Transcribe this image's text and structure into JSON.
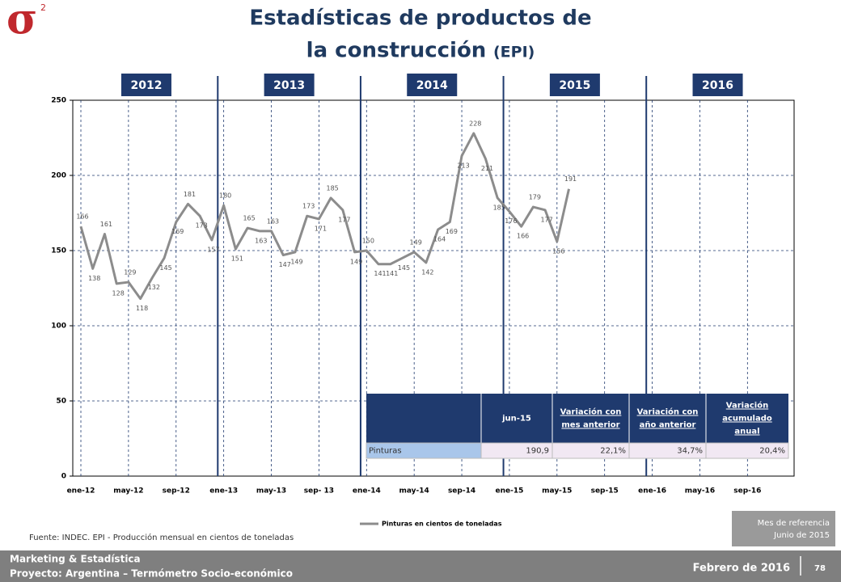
{
  "logo": {
    "symbol": "σ",
    "superscript": "2"
  },
  "title_line1": "Estadísticas de productos de",
  "title_line2": "la construcción",
  "title_suffix": "(EPI)",
  "chart_data": {
    "type": "line",
    "periods": [
      "2012",
      "2013",
      "2014",
      "2015",
      "2016"
    ],
    "categories": [
      "ene-12",
      null,
      null,
      null,
      "may-12",
      null,
      null,
      null,
      "sep-12",
      null,
      null,
      null,
      "ene-13",
      null,
      null,
      null,
      "may-13",
      null,
      null,
      null,
      "sep- 13",
      null,
      null,
      null,
      "ene-14",
      null,
      null,
      null,
      "may-14",
      null,
      null,
      null,
      "sep-14",
      null,
      null,
      null,
      "ene-15",
      null,
      null,
      null,
      "may-15",
      null,
      null,
      null,
      "sep-15",
      null,
      null,
      null,
      "ene-16",
      null,
      null,
      null,
      "may-16",
      null,
      null,
      null,
      "sep-16",
      null,
      null,
      null
    ],
    "series": [
      {
        "name": "Pinturas en cientos de toneladas",
        "color": "#8c8c8c",
        "values": [
          166,
          138,
          161,
          128,
          129,
          118,
          132,
          145,
          169,
          181,
          173,
          157,
          180,
          151,
          165,
          163,
          163,
          147,
          149,
          173,
          171,
          185,
          177,
          149,
          150,
          141,
          141,
          145,
          149,
          142,
          164,
          169,
          213,
          228,
          211,
          185,
          176,
          166,
          179,
          177,
          156,
          191,
          null,
          null,
          null,
          null,
          null,
          null,
          null,
          null,
          null,
          null,
          null,
          null,
          null,
          null,
          null,
          null,
          null,
          null
        ]
      }
    ],
    "ylim": [
      0,
      250
    ],
    "yticks": [
      0,
      50,
      100,
      150,
      200,
      250
    ],
    "grid": true
  },
  "table": {
    "header": [
      "jun-15",
      "Variación con mes anterior",
      "Variación con año anterior",
      "Variación acumulado anual"
    ],
    "rows": [
      [
        "Pinturas",
        "190,9",
        "22,1%",
        "34,7%",
        "20,4%"
      ]
    ]
  },
  "source": "Fuente: INDEC. EPI - Producción mensual en cientos de toneladas",
  "reference": [
    "Mes de referencia",
    "Junio de 2015"
  ],
  "footer": {
    "line1": "Marketing & Estadística",
    "line2": "Proyecto: Argentina – Termómetro Socio-económico",
    "date": "Febrero de 2016",
    "page": "78"
  }
}
